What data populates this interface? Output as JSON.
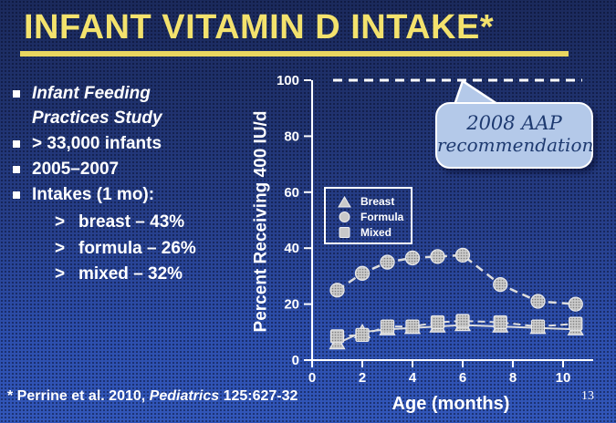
{
  "title": {
    "text": "INFANT VITAMIN D INTAKE*"
  },
  "bullets": {
    "items": [
      {
        "text": "Infant Feeding Practices Study"
      },
      {
        "text": "> 33,000 infants"
      },
      {
        "text": "2005–2007"
      },
      {
        "text": "Intakes (1 mo):"
      }
    ],
    "sub_items": [
      {
        "marker": ">",
        "text": "breast  – 43%"
      },
      {
        "marker": ">",
        "text": "formula – 26%"
      },
      {
        "marker": ">",
        "text": "mixed – 32%"
      }
    ]
  },
  "callout": {
    "line1": "2008 AAP",
    "line2": "recommendation"
  },
  "citation": {
    "prefix": "* Perrine et al. 2010, ",
    "journal": "Pediatrics",
    "suffix": " 125:627-32"
  },
  "page_number": "13",
  "chart_data": {
    "type": "line",
    "title": "",
    "xlabel": "Age (months)",
    "ylabel": "Percent Receiving 400 IU/d",
    "xlim": [
      0,
      11.2
    ],
    "ylim": [
      0,
      100
    ],
    "xticks": [
      0,
      2,
      4,
      6,
      8,
      10
    ],
    "yticks": [
      0,
      20,
      40,
      60,
      80,
      100
    ],
    "grid": false,
    "legend_position": "upper-left-inside",
    "reference_line": {
      "y": 100,
      "style": "dashed",
      "meaning": "2008 AAP recommendation"
    },
    "x": [
      1,
      2,
      3,
      4,
      5,
      6,
      7.5,
      9,
      10.5
    ],
    "series": [
      {
        "name": "Breast",
        "marker": "triangle",
        "line": "solid",
        "values": [
          6,
          10,
          11,
          11.5,
          12,
          12.5,
          12,
          11.5,
          11
        ]
      },
      {
        "name": "Formula",
        "marker": "circle",
        "line": "dashed",
        "values": [
          25,
          31,
          35,
          36.5,
          37,
          37.5,
          27,
          21,
          20
        ]
      },
      {
        "name": "Mixed",
        "marker": "square",
        "line": "dashed",
        "values": [
          8.5,
          9,
          12,
          12,
          13.5,
          14,
          13.5,
          12,
          13
        ]
      }
    ]
  },
  "colors": {
    "background_top": "#1b2a5c",
    "background_bottom": "#3257ba",
    "title_yellow": "#f3e26d",
    "underline_yellow": "#e9d660",
    "text_white": "#ffffff",
    "callout_bg": "#b4c9e9",
    "callout_text": "#1e3a70",
    "marker_gray": "#c9c9c9",
    "series_line": "#dedede"
  }
}
